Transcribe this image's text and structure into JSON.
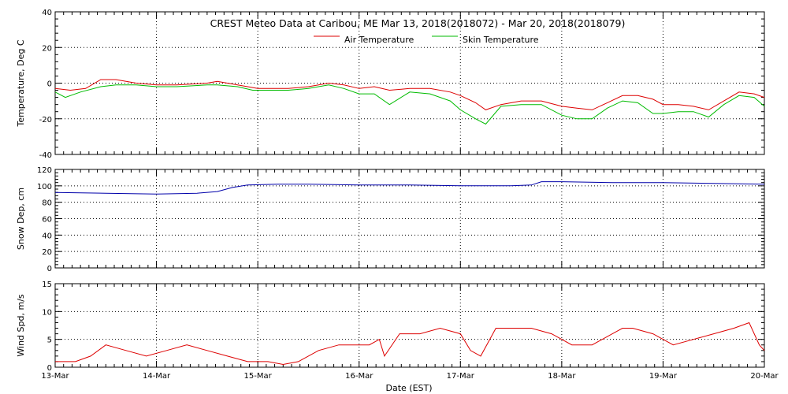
{
  "chart_data": {
    "type": "line",
    "title": "CREST Meteo Data at Caribou, ME   Mar 13, 2018(2018072) - Mar 20, 2018(2018079)",
    "xlabel": "Date (EST)",
    "x_tick_labels": [
      "13-Mar",
      "14-Mar",
      "15-Mar",
      "16-Mar",
      "17-Mar",
      "18-Mar",
      "19-Mar",
      "20-Mar"
    ],
    "x_days": [
      13,
      14,
      15,
      16,
      17,
      18,
      19,
      20
    ],
    "xlim": [
      13,
      20
    ],
    "grid": true,
    "panels": [
      {
        "ylabel": "Temperature, Deg C",
        "ylim": [
          -40,
          40
        ],
        "yticks": [
          -40,
          -20,
          0,
          20,
          40
        ],
        "legend_position": "top-center",
        "series": [
          {
            "name": "Air Temperature",
            "color": "#dd0000",
            "x": [
              13.0,
              13.15,
              13.3,
              13.45,
              13.6,
              13.8,
              14.0,
              14.2,
              14.5,
              14.6,
              14.8,
              15.0,
              15.3,
              15.5,
              15.7,
              15.85,
              16.0,
              16.15,
              16.3,
              16.5,
              16.7,
              16.9,
              17.0,
              17.15,
              17.25,
              17.4,
              17.6,
              17.8,
              18.0,
              18.15,
              18.3,
              18.45,
              18.6,
              18.75,
              18.9,
              19.0,
              19.15,
              19.3,
              19.45,
              19.6,
              19.75,
              19.9,
              20.0
            ],
            "y": [
              -3,
              -4,
              -3,
              2,
              2,
              0,
              -1,
              -1,
              0,
              1,
              -1,
              -3,
              -3,
              -2,
              0,
              -1,
              -3,
              -2,
              -4,
              -3,
              -3,
              -5,
              -7,
              -11,
              -15,
              -12,
              -10,
              -10,
              -13,
              -14,
              -15,
              -11,
              -7,
              -7,
              -9,
              -12,
              -12,
              -13,
              -15,
              -10,
              -5,
              -6,
              -8
            ]
          },
          {
            "name": "Skin Temperature",
            "color": "#00bb00",
            "x": [
              13.0,
              13.1,
              13.25,
              13.45,
              13.6,
              13.8,
              14.0,
              14.2,
              14.5,
              14.6,
              14.8,
              14.95,
              15.3,
              15.5,
              15.7,
              15.85,
              16.0,
              16.15,
              16.3,
              16.5,
              16.7,
              16.9,
              17.0,
              17.15,
              17.25,
              17.4,
              17.6,
              17.8,
              18.0,
              18.15,
              18.3,
              18.45,
              18.6,
              18.75,
              18.9,
              19.0,
              19.15,
              19.3,
              19.45,
              19.6,
              19.75,
              19.9,
              20.0
            ],
            "y": [
              -5,
              -8,
              -5,
              -2,
              -1,
              -1,
              -2,
              -2,
              -1,
              -1,
              -2,
              -4,
              -4,
              -3,
              -1,
              -3,
              -6,
              -6,
              -12,
              -5,
              -6,
              -10,
              -15,
              -20,
              -23,
              -13,
              -12,
              -12,
              -18,
              -20,
              -20,
              -14,
              -10,
              -11,
              -17,
              -17,
              -16,
              -16,
              -19,
              -12,
              -7,
              -8,
              -13
            ]
          }
        ]
      },
      {
        "ylabel": "Snow Dep, cm",
        "ylim": [
          0,
          120
        ],
        "yticks": [
          0,
          20,
          40,
          60,
          80,
          100,
          120
        ],
        "series": [
          {
            "name": "",
            "color": "#0000aa",
            "x": [
              13.0,
              13.5,
              14.0,
              14.4,
              14.6,
              14.75,
              14.9,
              15.2,
              15.5,
              16.0,
              16.5,
              17.0,
              17.5,
              17.7,
              17.8,
              18.0,
              18.5,
              19.0,
              19.5,
              20.0
            ],
            "y": [
              92,
              91,
              90,
              91,
              93,
              98,
              101,
              102,
              102,
              101,
              101,
              100,
              100,
              101,
              105,
              105,
              104,
              104,
              103,
              102
            ]
          }
        ]
      },
      {
        "ylabel": "Wind Spd, m/s",
        "ylim": [
          0,
          15
        ],
        "yticks": [
          0,
          5,
          10,
          15
        ],
        "series": [
          {
            "name": "",
            "color": "#dd0000",
            "x": [
              13.0,
              13.1,
              13.2,
              13.35,
              13.5,
              13.7,
              13.9,
              14.1,
              14.3,
              14.5,
              14.7,
              14.9,
              15.1,
              15.25,
              15.4,
              15.6,
              15.8,
              16.0,
              16.1,
              16.2,
              16.25,
              16.4,
              16.6,
              16.8,
              17.0,
              17.1,
              17.2,
              17.35,
              17.5,
              17.7,
              17.9,
              18.1,
              18.3,
              18.5,
              18.6,
              18.7,
              18.9,
              19.1,
              19.3,
              19.5,
              19.7,
              19.85,
              19.95,
              20.0
            ],
            "y": [
              1,
              1,
              1,
              2,
              4,
              3,
              2,
              3,
              4,
              3,
              2,
              1,
              1,
              0.5,
              1,
              3,
              4,
              4,
              4,
              5,
              2,
              6,
              6,
              7,
              6,
              3,
              2,
              7,
              7,
              7,
              6,
              4,
              4,
              6,
              7,
              7,
              6,
              4,
              5,
              6,
              7,
              8,
              4,
              3
            ]
          }
        ]
      }
    ]
  }
}
